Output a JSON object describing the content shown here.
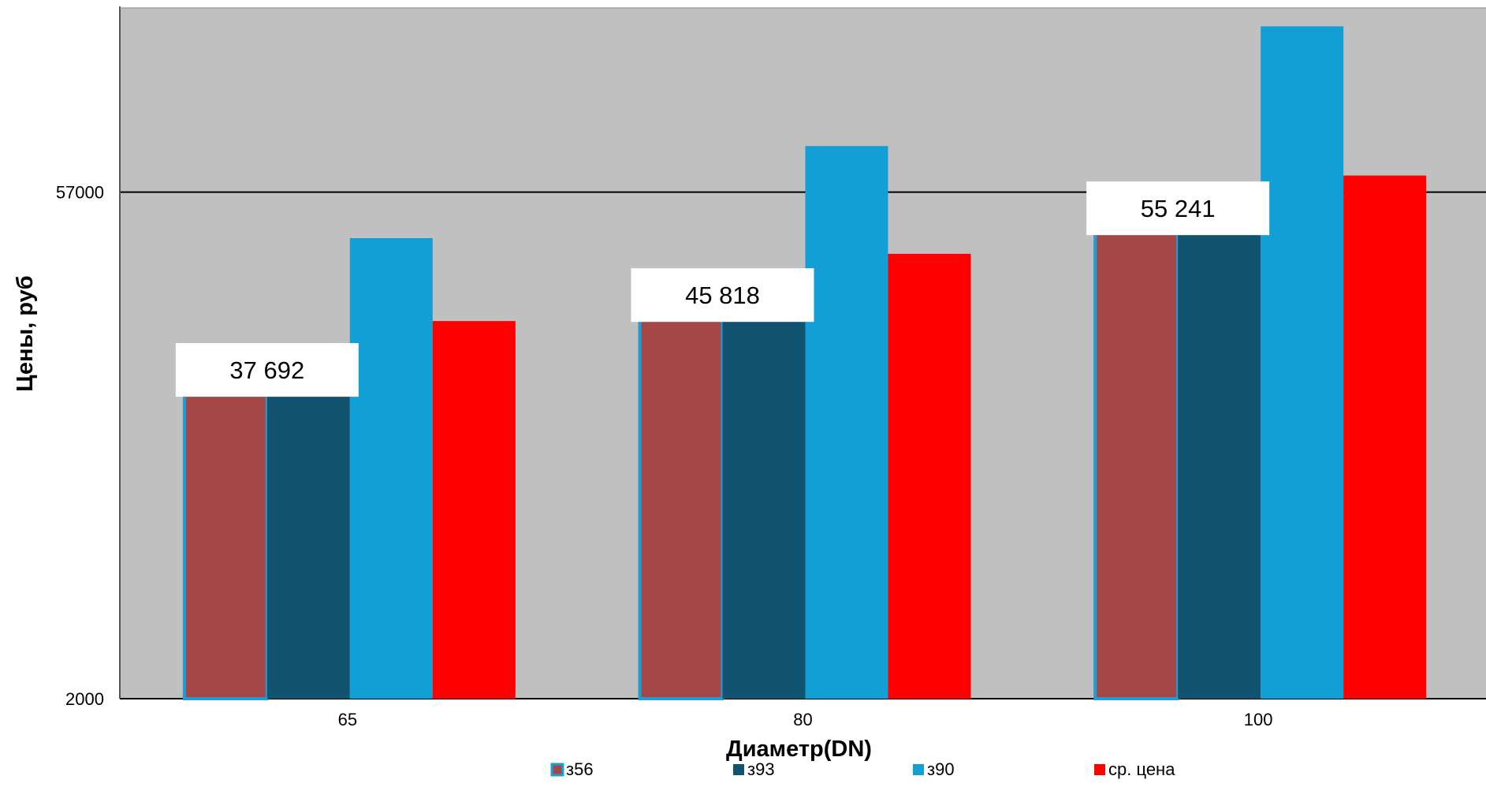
{
  "chart_data": {
    "type": "bar",
    "title": "",
    "xlabel": "Диаметр(DN)",
    "ylabel": "Цены, руб",
    "categories": [
      "65",
      "80",
      "100"
    ],
    "ylim": [
      2000,
      77000
    ],
    "yticks": [
      "2000",
      "57000"
    ],
    "grid": "horizontal",
    "plot_background": "#c0c0c0",
    "legend_position": "bottom",
    "series": [
      {
        "name": "з56",
        "color": "#a64747",
        "border": "#1a9fd8",
        "values": [
          37692,
          45818,
          55241
        ]
      },
      {
        "name": "з93",
        "color": "#125470",
        "values": [
          37692,
          45818,
          55241
        ]
      },
      {
        "name": "з90",
        "color": "#129fd6",
        "values": [
          52000,
          62000,
          75000
        ]
      },
      {
        "name": "ср. цена",
        "color": "#ff0000",
        "values": [
          43000,
          50300,
          58800
        ]
      }
    ],
    "data_labels": [
      {
        "category": "65",
        "text": "37 692"
      },
      {
        "category": "80",
        "text": "45 818"
      },
      {
        "category": "100",
        "text": "55 241"
      }
    ]
  }
}
